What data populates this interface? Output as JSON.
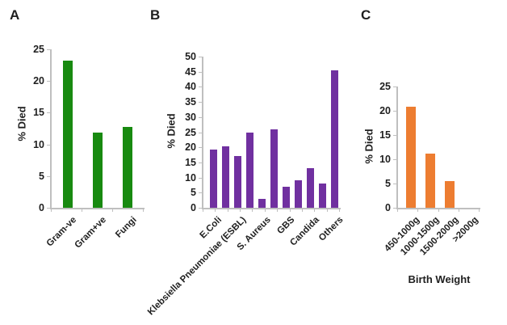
{
  "figure": {
    "background": "#ffffff",
    "text_color": "#1f1f1f",
    "axis_color": "#bfbfbf"
  },
  "chart_data": [
    {
      "type": "bar",
      "panel_label": "A",
      "title": "",
      "ylabel": "% Died",
      "xlabel": "",
      "ymin": 0,
      "ymax": 25,
      "ytick_step": 5,
      "grid": false,
      "legend": false,
      "bar_color": "#188a10",
      "categories": [
        "Gram-ve",
        "Gram+ve",
        "Fungi"
      ],
      "values": [
        23.2,
        11.9,
        12.8
      ]
    },
    {
      "type": "bar",
      "panel_label": "B",
      "title": "",
      "ylabel": "% Died",
      "xlabel": "",
      "ymin": 0,
      "ymax": 50,
      "ytick_step": 5,
      "grid": false,
      "legend": false,
      "bar_color": "#7030a0",
      "categories": [
        "E.Coli",
        "",
        "Klebsiella Pneumoniae (ESBL)",
        "",
        "S. Aureus",
        "",
        "GBS",
        "",
        "Candida",
        "",
        "Others"
      ],
      "values": [
        19.3,
        20.2,
        17,
        25,
        3,
        26,
        7,
        9,
        13,
        8,
        45.5
      ]
    },
    {
      "type": "bar",
      "panel_label": "C",
      "title": "",
      "ylabel": "% Died",
      "xlabel": "Birth Weight",
      "ymin": 0,
      "ymax": 25,
      "ytick_step": 5,
      "grid": false,
      "legend": false,
      "bar_color": "#ed7d31",
      "categories": [
        "450-1000g",
        "1000-1500g",
        "1500-2000g",
        ">2000g"
      ],
      "values": [
        20.8,
        11.2,
        5.5,
        0
      ]
    }
  ]
}
